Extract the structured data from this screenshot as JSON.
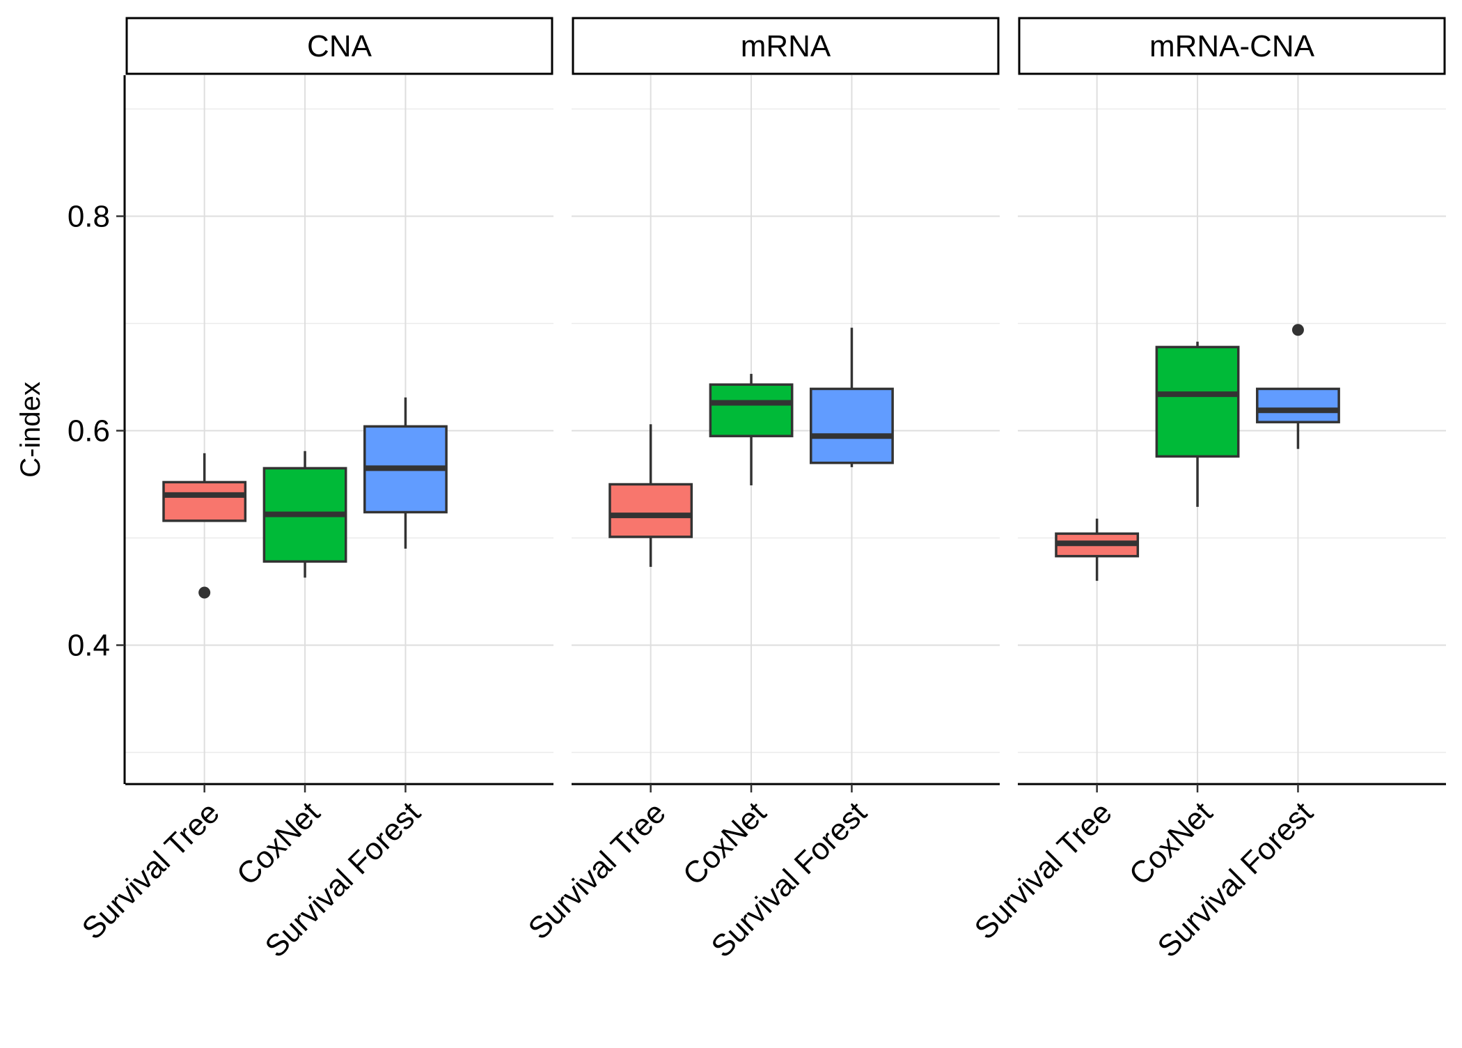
{
  "chart_data": {
    "type": "boxplot",
    "ylabel": "C-index",
    "xlabel": "",
    "ylim": [
      0.27,
      0.93
    ],
    "yticks": [
      0.4,
      0.6,
      0.8
    ],
    "ytick_labels": [
      "0.4",
      "0.6",
      "0.8"
    ],
    "grid": true,
    "legend": "none",
    "categories": [
      "Survival Tree",
      "CoxNet",
      "Survival Forest"
    ],
    "colors": {
      "Survival Tree": "#F8766D",
      "CoxNet": "#00BA38",
      "Survival Forest": "#619CFF"
    },
    "panels": [
      {
        "title": "CNA",
        "boxes": [
          {
            "category": "Survival Tree",
            "whisker_low": 0.516,
            "q1": 0.516,
            "median": 0.54,
            "q3": 0.552,
            "whisker_high": 0.579,
            "outliers": [
              0.449
            ]
          },
          {
            "category": "CoxNet",
            "whisker_low": 0.463,
            "q1": 0.478,
            "median": 0.522,
            "q3": 0.565,
            "whisker_high": 0.581,
            "outliers": []
          },
          {
            "category": "Survival Forest",
            "whisker_low": 0.49,
            "q1": 0.524,
            "median": 0.565,
            "q3": 0.604,
            "whisker_high": 0.631,
            "outliers": []
          }
        ]
      },
      {
        "title": "mRNA",
        "boxes": [
          {
            "category": "Survival Tree",
            "whisker_low": 0.473,
            "q1": 0.501,
            "median": 0.521,
            "q3": 0.55,
            "whisker_high": 0.606,
            "outliers": []
          },
          {
            "category": "CoxNet",
            "whisker_low": 0.549,
            "q1": 0.595,
            "median": 0.626,
            "q3": 0.643,
            "whisker_high": 0.653,
            "outliers": []
          },
          {
            "category": "Survival Forest",
            "whisker_low": 0.566,
            "q1": 0.57,
            "median": 0.595,
            "q3": 0.639,
            "whisker_high": 0.696,
            "outliers": []
          }
        ]
      },
      {
        "title": "mRNA-CNA",
        "boxes": [
          {
            "category": "Survival Tree",
            "whisker_low": 0.46,
            "q1": 0.483,
            "median": 0.495,
            "q3": 0.504,
            "whisker_high": 0.518,
            "outliers": []
          },
          {
            "category": "CoxNet",
            "whisker_low": 0.529,
            "q1": 0.576,
            "median": 0.634,
            "q3": 0.678,
            "whisker_high": 0.683,
            "outliers": []
          },
          {
            "category": "Survival Forest",
            "whisker_low": 0.583,
            "q1": 0.608,
            "median": 0.619,
            "q3": 0.639,
            "whisker_high": 0.639,
            "outliers": [
              0.694
            ]
          }
        ]
      }
    ]
  }
}
